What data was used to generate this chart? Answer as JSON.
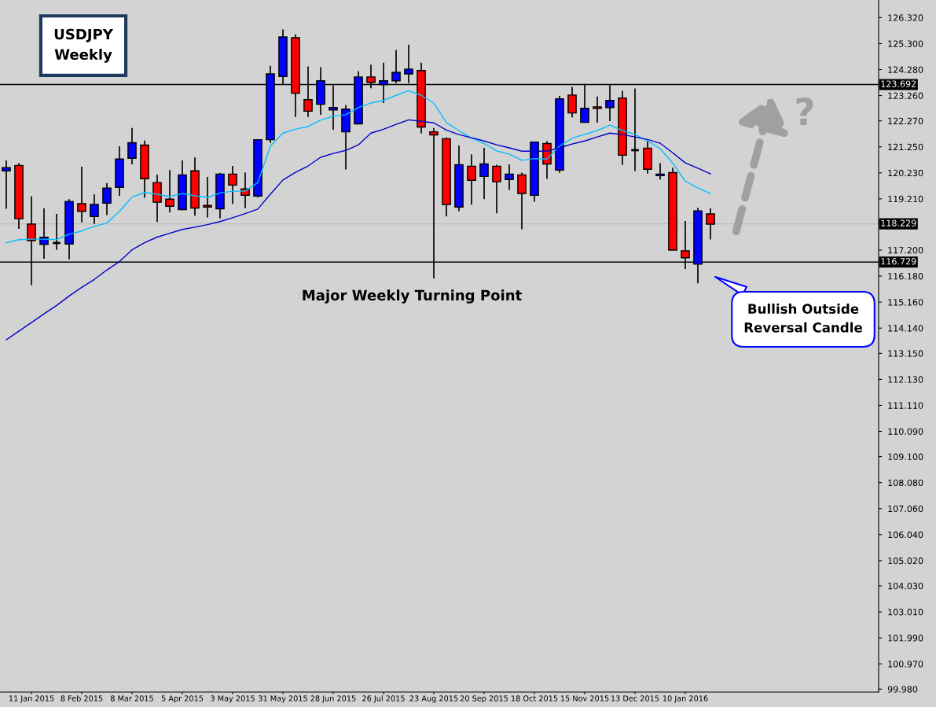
{
  "chart_data": {
    "type": "candlestick",
    "title": "USDJPY",
    "subtitle": "Weekly",
    "categories": [
      null,
      null,
      "11 Jan 2015",
      null,
      null,
      null,
      "8 Feb 2015",
      null,
      null,
      null,
      "8 Mar 2015",
      null,
      null,
      null,
      "5 Apr 2015",
      null,
      null,
      null,
      "3 May 2015",
      null,
      null,
      null,
      "31 May 2015",
      null,
      null,
      null,
      "28 Jun 2015",
      null,
      null,
      null,
      "26 Jul 2015",
      null,
      null,
      null,
      "23 Aug 2015",
      null,
      null,
      null,
      "20 Sep 2015",
      null,
      null,
      null,
      "18 Oct 2015",
      null,
      null,
      null,
      "15 Nov 2015",
      null,
      null,
      null,
      "13 Dec 2015",
      null,
      null,
      null,
      "10 Jan 2016",
      null,
      null
    ],
    "ohlc": [
      [
        120.31,
        120.72,
        118.82,
        120.43
      ],
      [
        120.52,
        120.61,
        118.03,
        118.43
      ],
      [
        118.22,
        119.31,
        115.82,
        117.57
      ],
      [
        117.42,
        118.84,
        116.86,
        117.7
      ],
      [
        117.48,
        118.62,
        117.21,
        117.48
      ],
      [
        117.44,
        119.2,
        116.83,
        119.11
      ],
      [
        119.02,
        120.47,
        118.29,
        118.72
      ],
      [
        118.52,
        119.38,
        118.23,
        118.99
      ],
      [
        119.04,
        119.83,
        118.57,
        119.63
      ],
      [
        119.66,
        121.27,
        119.33,
        120.77
      ],
      [
        120.8,
        121.99,
        120.56,
        121.41
      ],
      [
        121.32,
        121.5,
        119.25,
        120.0
      ],
      [
        119.85,
        120.16,
        118.3,
        119.08
      ],
      [
        119.2,
        120.34,
        118.67,
        118.92
      ],
      [
        118.79,
        120.72,
        118.77,
        120.15
      ],
      [
        120.31,
        120.83,
        118.55,
        118.85
      ],
      [
        118.95,
        120.07,
        118.48,
        118.89
      ],
      [
        118.82,
        120.23,
        118.44,
        120.18
      ],
      [
        120.18,
        120.5,
        119.01,
        119.75
      ],
      [
        119.6,
        120.25,
        118.85,
        119.35
      ],
      [
        119.32,
        121.53,
        119.27,
        121.53
      ],
      [
        121.53,
        124.43,
        121.4,
        124.11
      ],
      [
        124.01,
        125.85,
        123.68,
        125.56
      ],
      [
        125.53,
        125.66,
        122.42,
        123.35
      ],
      [
        123.1,
        124.4,
        122.42,
        122.65
      ],
      [
        122.92,
        124.37,
        122.51,
        123.84
      ],
      [
        122.7,
        123.67,
        121.92,
        122.79
      ],
      [
        121.84,
        122.89,
        120.36,
        122.73
      ],
      [
        122.15,
        124.22,
        122.15,
        123.99
      ],
      [
        123.99,
        124.47,
        123.55,
        123.78
      ],
      [
        123.69,
        124.55,
        122.97,
        123.84
      ],
      [
        123.84,
        125.05,
        123.75,
        124.17
      ],
      [
        124.11,
        125.26,
        123.75,
        124.3
      ],
      [
        124.24,
        124.55,
        121.77,
        122.03
      ],
      [
        121.84,
        121.99,
        116.09,
        121.72
      ],
      [
        121.57,
        121.62,
        118.52,
        118.99
      ],
      [
        118.89,
        121.3,
        118.73,
        120.55
      ],
      [
        120.49,
        120.96,
        118.98,
        119.94
      ],
      [
        120.09,
        121.21,
        119.2,
        120.58
      ],
      [
        120.49,
        120.55,
        118.64,
        119.88
      ],
      [
        119.97,
        120.56,
        119.56,
        120.18
      ],
      [
        120.15,
        120.24,
        118.02,
        119.42
      ],
      [
        119.35,
        121.44,
        119.1,
        121.44
      ],
      [
        121.38,
        121.47,
        119.99,
        120.58
      ],
      [
        120.34,
        123.25,
        120.23,
        123.13
      ],
      [
        123.28,
        123.6,
        122.41,
        122.58
      ],
      [
        122.21,
        123.72,
        122.21,
        122.76
      ],
      [
        122.82,
        123.22,
        122.2,
        122.76
      ],
      [
        122.79,
        123.67,
        122.26,
        123.07
      ],
      [
        123.16,
        123.45,
        120.54,
        120.92
      ],
      [
        121.12,
        123.54,
        120.3,
        121.12
      ],
      [
        121.2,
        121.48,
        120.2,
        120.37
      ],
      [
        120.12,
        120.61,
        119.97,
        120.18
      ],
      [
        120.24,
        120.43,
        117.2,
        117.2
      ],
      [
        117.17,
        118.34,
        116.46,
        116.9
      ],
      [
        116.65,
        118.86,
        115.9,
        118.74
      ],
      [
        118.62,
        118.84,
        117.62,
        118.22
      ]
    ],
    "colors": [
      "#0000ff",
      "#ff0000",
      "#ff0000",
      "#0000ff",
      "#000000",
      "#0000ff",
      "#ff0000",
      "#0000ff",
      "#0000ff",
      "#0000ff",
      "#0000ff",
      "#ff0000",
      "#ff0000",
      "#ff0000",
      "#0000ff",
      "#ff0000",
      "#ff0000",
      "#0000ff",
      "#ff0000",
      "#ff0000",
      "#0000ff",
      "#0000ff",
      "#0000ff",
      "#ff0000",
      "#ff0000",
      "#0000ff",
      "#0000ff",
      "#0000ff",
      "#0000ff",
      "#ff0000",
      "#0000ff",
      "#0000ff",
      "#0000ff",
      "#ff0000",
      "#ff0000",
      "#ff0000",
      "#0000ff",
      "#ff0000",
      "#0000ff",
      "#ff0000",
      "#0000ff",
      "#ff0000",
      "#0000ff",
      "#ff0000",
      "#0000ff",
      "#ff0000",
      "#0000ff",
      "#ff0000",
      "#0000ff",
      "#ff0000",
      "#000000",
      "#ff0000",
      "#0000ff",
      "#ff0000",
      "#ff0000",
      "#0000ff",
      "#ff0000"
    ],
    "series": [
      {
        "type": "line",
        "color": "#00bfff",
        "values": [
          117.49,
          117.61,
          117.63,
          117.63,
          117.61,
          117.82,
          117.95,
          118.13,
          118.26,
          118.72,
          119.28,
          119.46,
          119.39,
          119.3,
          119.42,
          119.33,
          119.26,
          119.44,
          119.51,
          119.51,
          119.85,
          121.28,
          121.79,
          121.94,
          122.05,
          122.3,
          122.45,
          122.51,
          122.79,
          122.97,
          123.07,
          123.27,
          123.45,
          123.27,
          122.97,
          122.2,
          121.89,
          121.59,
          121.38,
          121.09,
          120.97,
          120.72,
          120.79,
          120.77,
          121.28,
          121.59,
          121.74,
          121.89,
          122.1,
          121.89,
          121.74,
          121.48,
          121.18,
          120.61,
          119.9,
          119.64,
          119.42
        ]
      },
      {
        "type": "line",
        "color": "#0000c8",
        "values": [
          113.68,
          114.02,
          114.36,
          114.7,
          115.03,
          115.4,
          115.74,
          116.05,
          116.42,
          116.75,
          117.21,
          117.49,
          117.71,
          117.86,
          118.01,
          118.1,
          118.2,
          118.32,
          118.47,
          118.63,
          118.81,
          119.39,
          119.95,
          120.25,
          120.5,
          120.84,
          120.99,
          121.11,
          121.33,
          121.79,
          121.94,
          122.13,
          122.31,
          122.25,
          122.19,
          121.91,
          121.73,
          121.61,
          121.48,
          121.33,
          121.21,
          121.08,
          121.08,
          121.08,
          121.21,
          121.36,
          121.48,
          121.64,
          121.79,
          121.73,
          121.64,
          121.54,
          121.39,
          121.02,
          120.62,
          120.41,
          120.19
        ]
      }
    ],
    "ylim": [
      99.865,
      127.01
    ],
    "yticks": [
      {
        "value": 126.32,
        "label": "126.320"
      },
      {
        "value": 125.3,
        "label": "125.300"
      },
      {
        "value": 124.28,
        "label": "124.280"
      },
      {
        "value": 123.26,
        "label": "123.260"
      },
      {
        "value": 122.27,
        "label": "122.270"
      },
      {
        "value": 121.25,
        "label": "121.250"
      },
      {
        "value": 120.23,
        "label": "120.230"
      },
      {
        "value": 119.21,
        "label": "119.210"
      },
      {
        "value": 117.2,
        "label": "117.200"
      },
      {
        "value": 116.18,
        "label": "116.180"
      },
      {
        "value": 115.16,
        "label": "115.160"
      },
      {
        "value": 114.14,
        "label": "114.140"
      },
      {
        "value": 113.15,
        "label": "113.150"
      },
      {
        "value": 112.13,
        "label": "112.130"
      },
      {
        "value": 111.11,
        "label": "111.110"
      },
      {
        "value": 110.09,
        "label": "110.090"
      },
      {
        "value": 109.1,
        "label": "109.100"
      },
      {
        "value": 108.08,
        "label": "108.080"
      },
      {
        "value": 107.06,
        "label": "107.060"
      },
      {
        "value": 106.04,
        "label": "106.040"
      },
      {
        "value": 105.02,
        "label": "105.020"
      },
      {
        "value": 104.03,
        "label": "104.030"
      },
      {
        "value": 103.01,
        "label": "103.010"
      },
      {
        "value": 101.99,
        "label": "101.990"
      },
      {
        "value": 100.97,
        "label": "100.970"
      },
      {
        "value": 99.98,
        "label": "99.980"
      }
    ],
    "ref_lines": [
      {
        "axis": "y",
        "value": 123.692,
        "label": "123.692",
        "color": "#000000"
      },
      {
        "axis": "y",
        "value": 116.729,
        "label": "116.729",
        "color": "#000000"
      },
      {
        "axis": "y",
        "value": 118.229,
        "label": "118.229",
        "color": "#bdbdbd"
      }
    ],
    "annotations": [
      "Major Weekly Turning Point",
      "Bullish Outside\nReversal Candle",
      "?"
    ],
    "grid": false,
    "legend": false
  }
}
